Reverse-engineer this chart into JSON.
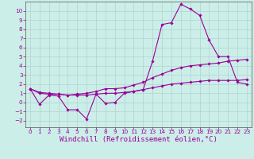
{
  "xlabel": "Windchill (Refroidissement éolien,°C)",
  "background_color": "#cceee8",
  "grid_color": "#aacccc",
  "line_color": "#990099",
  "x_ticks": [
    0,
    1,
    2,
    3,
    4,
    5,
    6,
    7,
    8,
    9,
    10,
    11,
    12,
    13,
    14,
    15,
    16,
    17,
    18,
    19,
    20,
    21,
    22,
    23
  ],
  "y_ticks": [
    -2,
    -1,
    0,
    1,
    2,
    3,
    4,
    5,
    6,
    7,
    8,
    9,
    10
  ],
  "ylim": [
    -2.7,
    11.0
  ],
  "xlim": [
    -0.5,
    23.5
  ],
  "line1_x": [
    0,
    1,
    2,
    3,
    4,
    5,
    6,
    7,
    8,
    9,
    10,
    11,
    12,
    13,
    14,
    15,
    16,
    17,
    18,
    19,
    20,
    21,
    22,
    23
  ],
  "line1_y": [
    1.5,
    -0.2,
    0.8,
    0.7,
    -0.8,
    -0.8,
    -1.8,
    0.9,
    -0.1,
    0.0,
    1.0,
    1.2,
    1.4,
    4.5,
    8.5,
    8.7,
    10.7,
    10.2,
    9.5,
    6.8,
    5.0,
    5.0,
    2.2,
    2.0
  ],
  "line2_x": [
    0,
    1,
    2,
    3,
    4,
    5,
    6,
    7,
    8,
    9,
    10,
    11,
    12,
    13,
    14,
    15,
    16,
    17,
    18,
    19,
    20,
    21,
    22,
    23
  ],
  "line2_y": [
    1.5,
    1.1,
    1.0,
    0.9,
    0.8,
    0.9,
    1.0,
    1.2,
    1.5,
    1.5,
    1.6,
    1.9,
    2.2,
    2.7,
    3.1,
    3.5,
    3.8,
    4.0,
    4.1,
    4.2,
    4.3,
    4.5,
    4.6,
    4.7
  ],
  "line3_x": [
    0,
    1,
    2,
    3,
    4,
    5,
    6,
    7,
    8,
    9,
    10,
    11,
    12,
    13,
    14,
    15,
    16,
    17,
    18,
    19,
    20,
    21,
    22,
    23
  ],
  "line3_y": [
    1.5,
    1.0,
    0.9,
    0.9,
    0.8,
    0.8,
    0.8,
    0.9,
    1.0,
    1.0,
    1.1,
    1.2,
    1.4,
    1.6,
    1.8,
    2.0,
    2.1,
    2.2,
    2.3,
    2.4,
    2.4,
    2.4,
    2.4,
    2.5
  ],
  "tick_fontsize": 5.2,
  "label_fontsize": 6.5,
  "marker_size": 1.8,
  "line_width": 0.8
}
